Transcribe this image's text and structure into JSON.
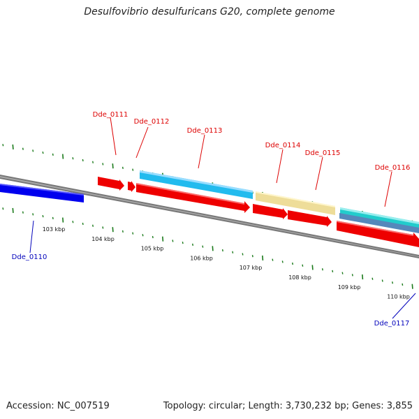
{
  "title": "Desulfovibrio desulfuricans G20, complete genome",
  "footer": {
    "accession": "Accession: NC_007519",
    "summary": "Topology: circular; Length: 3,730,232 bp; Genes: 3,855"
  },
  "colors": {
    "backbone": "#7a7a7a",
    "tick": "#1a7a1a",
    "label_top": "#dd0000",
    "label_bottom": "#0000bb"
  },
  "kbp_ticks": [
    "103 kbp",
    "104 kbp",
    "105 kbp",
    "106 kbp",
    "107 kbp",
    "108 kbp",
    "109 kbp",
    "110 kbp"
  ],
  "genes": [
    {
      "id": "Dde_0110",
      "color": "#0000ee",
      "strand": "minus"
    },
    {
      "id": "Dde_0111",
      "color": "#ee0000",
      "strand": "plus"
    },
    {
      "id": "Dde_0112",
      "color": "#ee0000",
      "strand": "plus"
    },
    {
      "id": "Dde_0113",
      "color": "#22bbee",
      "strand": "plus"
    },
    {
      "id": "Dde_0114",
      "color": "#eedd99",
      "strand": "plus"
    },
    {
      "id": "Dde_0115",
      "color": "#ee0000",
      "strand": "plus"
    },
    {
      "id": "Dde_0116",
      "color": "#22cccc",
      "strand": "plus"
    },
    {
      "id": "Dde_0117",
      "color": "#0000ee",
      "strand": "minus"
    }
  ]
}
